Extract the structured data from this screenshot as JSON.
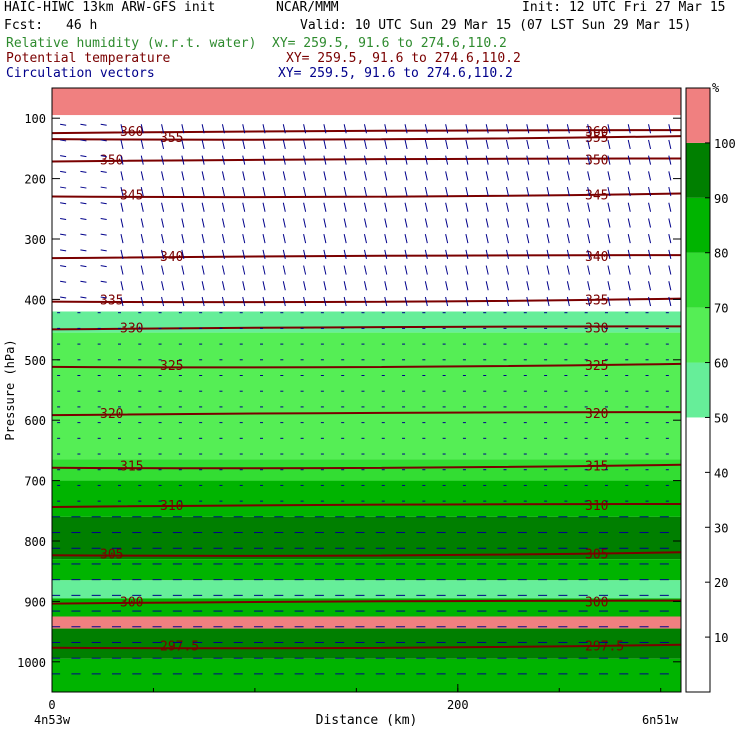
{
  "header": {
    "title": "HAIC-HIWC 13km ARW-GFS init",
    "source": "NCAR/MMM",
    "init": "Init: 12 UTC Fri 27 Mar 15",
    "fcst_label": "Fcst:",
    "fcst_value": "46 h",
    "valid": "Valid: 10 UTC Sun 29 Mar 15 (07 LST Sun 29 Mar 15)",
    "fields": [
      {
        "name": "Relative humidity (w.r.t. water)",
        "xy": "XY= 259.5, 91.6 to 274.6,110.2",
        "color": "#2e8b2e"
      },
      {
        "name": "Potential temperature",
        "xy": "XY= 259.5, 91.6 to 274.6,110.2",
        "color": "#7a0000"
      },
      {
        "name": "Circulation vectors",
        "xy": "XY= 259.5, 91.6 to 274.6,110.2",
        "color": "#00008b"
      }
    ]
  },
  "chart_data": {
    "type": "heatmap",
    "description_fields": [
      "relative humidity (shaded)",
      "potential temperature (contours)",
      "circulation vectors (arrows)"
    ],
    "xlabel": "Distance (km)",
    "ylabel": "Pressure (hPa)",
    "xlim": [
      0,
      310
    ],
    "ylim": [
      1050,
      50
    ],
    "x_ticks": [
      0,
      200
    ],
    "y_ticks": [
      100,
      200,
      300,
      400,
      500,
      600,
      700,
      800,
      900,
      1000
    ],
    "x_end_labels": {
      "left": "4n53w",
      "right": "6n51w"
    },
    "colorbar": {
      "unit": "%",
      "levels": [
        10,
        20,
        30,
        40,
        50,
        60,
        70,
        80,
        90,
        100
      ],
      "bins": [
        {
          "range": [
            50,
            60
          ],
          "color": "#66ee99"
        },
        {
          "range": [
            60,
            70
          ],
          "color": "#55ee55"
        },
        {
          "range": [
            70,
            80
          ],
          "color": "#33dd33"
        },
        {
          "range": [
            80,
            90
          ],
          "color": "#00b400"
        },
        {
          "range": [
            90,
            100
          ],
          "color": "#007f00"
        },
        {
          "range": [
            100,
            110
          ],
          "color": "#f08080"
        }
      ]
    },
    "rh_layers": [
      {
        "from": 50,
        "to": 95,
        "rh": 100
      },
      {
        "from": 95,
        "to": 420,
        "rh": 30
      },
      {
        "from": 420,
        "to": 455,
        "rh": 55
      },
      {
        "from": 455,
        "to": 665,
        "rh": 65
      },
      {
        "from": 665,
        "to": 700,
        "rh": 72
      },
      {
        "from": 700,
        "to": 760,
        "rh": 82
      },
      {
        "from": 760,
        "to": 830,
        "rh": 92
      },
      {
        "from": 830,
        "to": 865,
        "rh": 82
      },
      {
        "from": 865,
        "to": 895,
        "rh": 55
      },
      {
        "from": 895,
        "to": 925,
        "rh": 82
      },
      {
        "from": 925,
        "to": 945,
        "rh": 102
      },
      {
        "from": 945,
        "to": 995,
        "rh": 92
      },
      {
        "from": 995,
        "to": 1050,
        "rh": 82
      }
    ],
    "theta_contours": [
      {
        "value": 360,
        "p": 123,
        "label": "360"
      },
      {
        "value": 355,
        "p": 133,
        "label": "355"
      },
      {
        "value": 350,
        "p": 170,
        "label": "350"
      },
      {
        "value": 345,
        "p": 228,
        "label": "345"
      },
      {
        "value": 340,
        "p": 330,
        "label": "340"
      },
      {
        "value": 335,
        "p": 402,
        "label": "335"
      },
      {
        "value": 330,
        "p": 448,
        "label": "330"
      },
      {
        "value": 325,
        "p": 510,
        "label": "325"
      },
      {
        "value": 320,
        "p": 590,
        "label": "320"
      },
      {
        "value": 315,
        "p": 677,
        "label": "315"
      },
      {
        "value": 310,
        "p": 742,
        "label": "310"
      },
      {
        "value": 305,
        "p": 822,
        "label": "305"
      },
      {
        "value": 300,
        "p": 902,
        "label": "300"
      },
      {
        "value": 297.5,
        "p": 975,
        "label": "297.5"
      }
    ]
  }
}
